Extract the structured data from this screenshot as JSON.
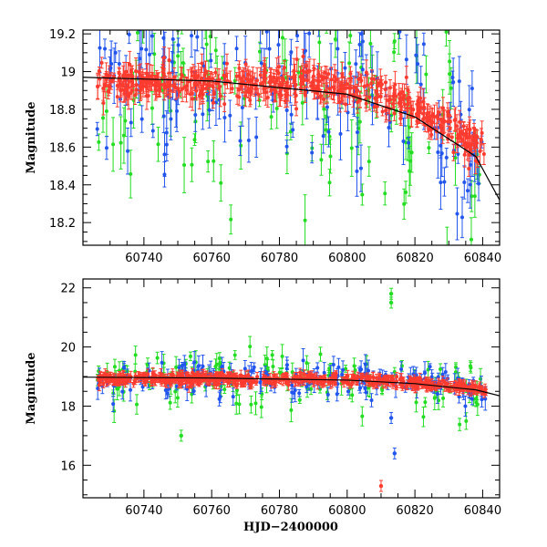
{
  "chart_data": [
    {
      "type": "scatter",
      "panel": "top",
      "title": "",
      "xlabel": "",
      "ylabel": "Magnitude",
      "xlim": [
        60722,
        60845
      ],
      "ylim": [
        19.22,
        18.08
      ],
      "y_inverted": true,
      "x_ticks": [
        60740,
        60760,
        60780,
        60800,
        60820,
        60840
      ],
      "y_ticks": [
        18.2,
        18.4,
        18.6,
        18.8,
        19,
        19.2
      ],
      "y_tick_labels": [
        "18.2",
        "18.4",
        "18.6",
        "18.8",
        "19",
        "19.2"
      ],
      "grid": false,
      "legend": "none",
      "series": [
        {
          "color": "#22dd22",
          "values_mode": "scattered",
          "x_range": [
            60726,
            60841
          ],
          "y_center": 18.92,
          "spread": 0.3
        },
        {
          "color": "#2255ee",
          "values_mode": "scattered",
          "x_range": [
            60726,
            60841
          ],
          "y_center": 18.92,
          "spread": 0.2
        },
        {
          "color": "#ff3b2f",
          "values_mode": "trend",
          "x_range": [
            60726,
            60841
          ],
          "y_center": 18.92,
          "spread": 0.05
        }
      ],
      "model_curve": {
        "color": "#000000",
        "points": [
          [
            60722,
            18.97
          ],
          [
            60760,
            18.95
          ],
          [
            60800,
            18.88
          ],
          [
            60820,
            18.76
          ],
          [
            60838,
            18.55
          ],
          [
            60845,
            18.32
          ]
        ]
      }
    },
    {
      "type": "scatter",
      "panel": "bottom",
      "title": "",
      "xlabel": "HJD−2400000",
      "ylabel": "Magnitude",
      "xlim": [
        60722,
        60845
      ],
      "ylim": [
        22.3,
        14.9
      ],
      "y_inverted": true,
      "x_ticks": [
        60740,
        60760,
        60780,
        60800,
        60820,
        60840
      ],
      "y_ticks": [
        16,
        18,
        20,
        22
      ],
      "y_tick_labels": [
        "16",
        "18",
        "20",
        "22"
      ],
      "grid": false,
      "legend": "none",
      "series": [
        {
          "color": "#22dd22",
          "values_mode": "scattered",
          "x_range": [
            60726,
            60841
          ],
          "y_center": 18.9,
          "spread": 0.5
        },
        {
          "color": "#2255ee",
          "values_mode": "scattered",
          "x_range": [
            60726,
            60841
          ],
          "y_center": 18.9,
          "spread": 0.3
        },
        {
          "color": "#ff3b2f",
          "values_mode": "trend",
          "x_range": [
            60726,
            60841
          ],
          "y_center": 18.9,
          "spread": 0.08
        }
      ],
      "outliers": [
        {
          "series": "red",
          "x": 60810,
          "y": 15.3
        },
        {
          "series": "blue",
          "x": 60814,
          "y": 16.4
        },
        {
          "series": "blue",
          "x": 60813,
          "y": 17.6
        },
        {
          "series": "green",
          "x": 60751,
          "y": 17.0
        },
        {
          "series": "green",
          "x": 60813,
          "y": 21.8
        },
        {
          "series": "green",
          "x": 60813,
          "y": 21.5
        }
      ],
      "model_curve": {
        "color": "#000000",
        "points": [
          [
            60722,
            18.98
          ],
          [
            60760,
            18.95
          ],
          [
            60800,
            18.88
          ],
          [
            60820,
            18.76
          ],
          [
            60838,
            18.55
          ],
          [
            60845,
            18.35
          ]
        ]
      }
    }
  ]
}
